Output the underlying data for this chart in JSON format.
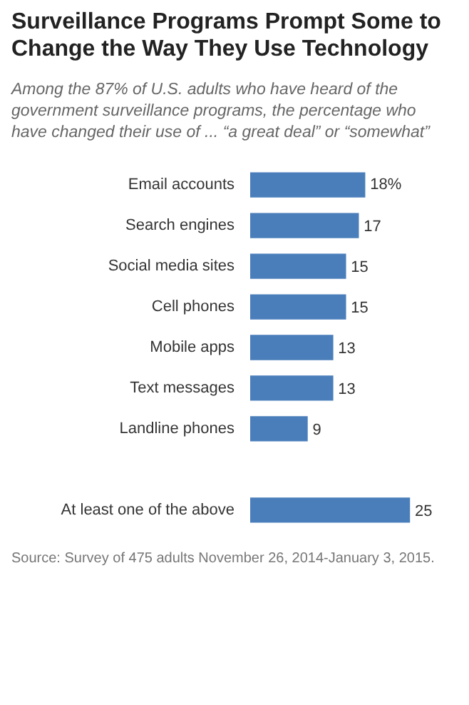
{
  "chart_data": {
    "type": "bar",
    "orientation": "horizontal",
    "title": "Surveillance Programs Prompt Some to Change the Way They Use Technology",
    "subtitle": "Among the 87% of U.S. adults who have heard of the government surveillance programs, the percentage who have changed their use of ... “a great deal” or “somewhat”",
    "categories": [
      "Email accounts",
      "Search engines",
      "Social media sites",
      "Cell phones",
      "Mobile apps",
      "Text messages",
      "Landline phones",
      null,
      "At least one of the above"
    ],
    "values": [
      18,
      17,
      15,
      15,
      13,
      13,
      9,
      null,
      25
    ],
    "value_labels": [
      "18%",
      "17",
      "15",
      "15",
      "13",
      "13",
      "9",
      null,
      "25"
    ],
    "color": "#4a7ebb",
    "annotations": [
      "Source: Survey of 475 adults November 26, 2014-January 3, 2015."
    ]
  }
}
